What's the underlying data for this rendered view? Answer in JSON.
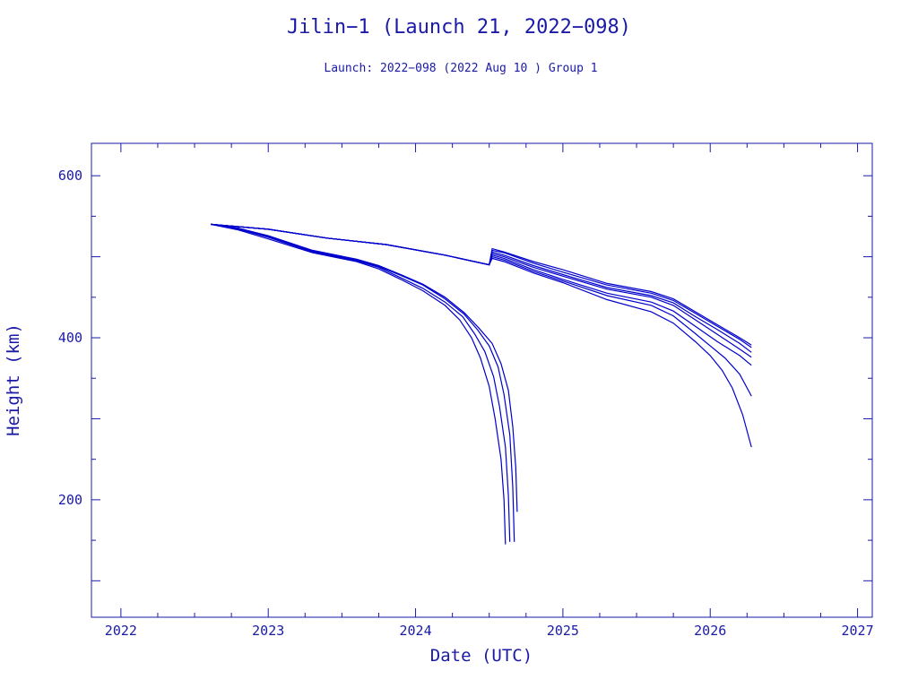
{
  "chart_data": {
    "type": "line",
    "title": "Jilin−1 (Launch 21, 2022−098)",
    "subtitle": "Launch: 2022−098  (2022 Aug 10 )  Group 1",
    "xlabel": "Date (UTC)",
    "ylabel": "Height (km)",
    "xlim": [
      2021.8,
      2027.1
    ],
    "ylim": [
      55,
      640
    ],
    "x_ticks": [
      2022,
      2023,
      2024,
      2025,
      2026,
      2027
    ],
    "x_tick_labels": [
      "2022",
      "2023",
      "2024",
      "2025",
      "2026",
      "2027"
    ],
    "y_ticks": [
      200,
      400,
      600
    ],
    "y_tick_labels": [
      "200",
      "400",
      "600"
    ],
    "grid": false,
    "series": [
      {
        "x": [
          2022.61,
          2022.8,
          2023.0,
          2023.3,
          2023.6,
          2023.75,
          2023.9,
          2024.05,
          2024.2,
          2024.3,
          2024.38,
          2024.44,
          2024.5,
          2024.54,
          2024.58,
          2024.6,
          2024.61
        ],
        "y": [
          540,
          533,
          522,
          505,
          494,
          485,
          472,
          458,
          440,
          422,
          400,
          375,
          340,
          300,
          250,
          200,
          145
        ]
      },
      {
        "x": [
          2022.61,
          2022.8,
          2023.0,
          2023.3,
          2023.6,
          2023.75,
          2023.9,
          2024.05,
          2024.2,
          2024.32,
          2024.4,
          2024.47,
          2024.53,
          2024.57,
          2024.61,
          2024.63,
          2024.64
        ],
        "y": [
          540,
          534,
          524,
          506,
          495,
          487,
          474,
          461,
          444,
          426,
          405,
          383,
          352,
          315,
          265,
          205,
          148
        ]
      },
      {
        "x": [
          2022.61,
          2022.8,
          2023.0,
          2023.3,
          2023.6,
          2023.75,
          2023.9,
          2024.05,
          2024.2,
          2024.33,
          2024.42,
          2024.5,
          2024.56,
          2024.6,
          2024.64,
          2024.66,
          2024.67
        ],
        "y": [
          540,
          535,
          525,
          507,
          496,
          488,
          477,
          465,
          448,
          429,
          410,
          390,
          364,
          330,
          280,
          215,
          148
        ]
      },
      {
        "x": [
          2022.61,
          2022.8,
          2023.0,
          2023.3,
          2023.6,
          2023.75,
          2023.9,
          2024.05,
          2024.2,
          2024.33,
          2024.43,
          2024.52,
          2024.58,
          2024.63,
          2024.66,
          2024.68,
          2024.69
        ],
        "y": [
          540,
          535,
          526,
          508,
          497,
          489,
          478,
          466,
          450,
          431,
          412,
          393,
          368,
          335,
          290,
          240,
          185
        ]
      },
      {
        "x": [
          2022.61,
          2023.0,
          2023.4,
          2023.8,
          2024.2,
          2024.5,
          2024.52,
          2024.6,
          2024.8,
          2025.0,
          2025.3,
          2025.6,
          2025.75,
          2025.9,
          2026.05,
          2026.2,
          2026.28
        ],
        "y": [
          540,
          534,
          523,
          515,
          502,
          490,
          508,
          505,
          492,
          481,
          465,
          455,
          446,
          430,
          414,
          398,
          388
        ]
      },
      {
        "x": [
          2022.61,
          2023.0,
          2023.4,
          2023.8,
          2024.2,
          2024.5,
          2024.52,
          2024.6,
          2024.8,
          2025.0,
          2025.3,
          2025.6,
          2025.75,
          2025.9,
          2026.05,
          2026.2,
          2026.28
        ],
        "y": [
          540,
          534,
          523,
          515,
          502,
          490,
          510,
          506,
          494,
          484,
          467,
          457,
          448,
          432,
          416,
          400,
          391
        ]
      },
      {
        "x": [
          2022.61,
          2023.0,
          2023.4,
          2023.8,
          2024.2,
          2024.5,
          2024.52,
          2024.6,
          2024.8,
          2025.0,
          2025.3,
          2025.6,
          2025.75,
          2025.9,
          2026.05,
          2026.2,
          2026.28
        ],
        "y": [
          540,
          534,
          523,
          515,
          502,
          490,
          506,
          502,
          489,
          478,
          462,
          452,
          443,
          426,
          410,
          393,
          382
        ]
      },
      {
        "x": [
          2022.61,
          2023.0,
          2023.4,
          2023.8,
          2024.2,
          2024.5,
          2024.52,
          2024.6,
          2024.8,
          2025.0,
          2025.3,
          2025.6,
          2025.75,
          2025.9,
          2026.05,
          2026.2,
          2026.28
        ],
        "y": [
          540,
          534,
          523,
          515,
          502,
          490,
          504,
          500,
          487,
          476,
          460,
          450,
          440,
          422,
          404,
          386,
          376
        ]
      },
      {
        "x": [
          2022.61,
          2023.0,
          2023.4,
          2023.8,
          2024.2,
          2024.5,
          2024.52,
          2024.6,
          2024.8,
          2025.0,
          2025.3,
          2025.6,
          2025.75,
          2025.9,
          2026.05,
          2026.2,
          2026.28
        ],
        "y": [
          540,
          534,
          523,
          515,
          502,
          490,
          502,
          498,
          484,
          472,
          455,
          444,
          433,
          414,
          395,
          378,
          366
        ]
      },
      {
        "x": [
          2022.61,
          2023.0,
          2023.4,
          2023.8,
          2024.2,
          2024.5,
          2024.52,
          2024.6,
          2024.8,
          2025.0,
          2025.3,
          2025.6,
          2025.75,
          2025.9,
          2026.0,
          2026.1,
          2026.2,
          2026.28
        ],
        "y": [
          540,
          534,
          523,
          515,
          502,
          490,
          500,
          496,
          482,
          470,
          452,
          440,
          427,
          405,
          390,
          375,
          355,
          328
        ]
      },
      {
        "x": [
          2022.61,
          2023.0,
          2023.4,
          2023.8,
          2024.2,
          2024.5,
          2024.52,
          2024.6,
          2024.8,
          2025.0,
          2025.3,
          2025.6,
          2025.75,
          2025.9,
          2026.0,
          2026.08,
          2026.15,
          2026.22,
          2026.28
        ],
        "y": [
          540,
          534,
          523,
          515,
          502,
          490,
          498,
          494,
          480,
          468,
          447,
          432,
          418,
          395,
          378,
          360,
          338,
          305,
          265
        ]
      }
    ]
  }
}
